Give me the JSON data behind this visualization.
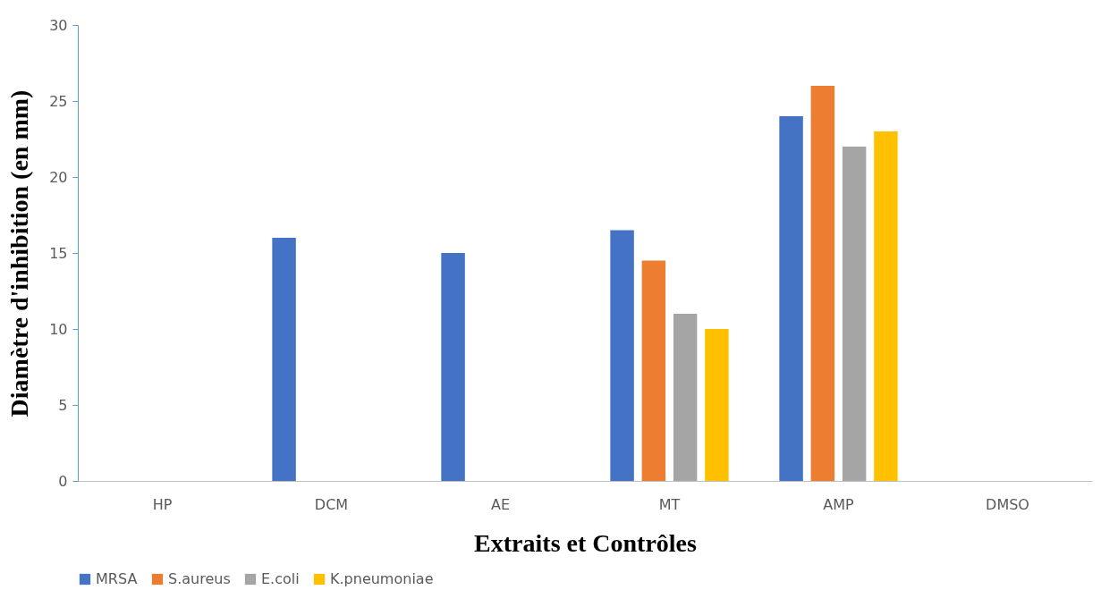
{
  "chart_data": {
    "type": "bar",
    "xlabel": "Extraits et Contrôles",
    "ylabel": "Diamètre d'inhibition (en mm)",
    "categories": [
      "HP",
      "DCM",
      "AE",
      "MT",
      "AMP",
      "DMSO"
    ],
    "series": [
      {
        "name": "MRSA",
        "color": "#4472c4",
        "values": [
          0,
          16,
          15,
          16.5,
          24,
          0
        ]
      },
      {
        "name": "S.aureus",
        "color": "#ed7d31",
        "values": [
          0,
          0,
          0,
          14.5,
          26,
          0
        ]
      },
      {
        "name": "E.coli",
        "color": "#a5a5a5",
        "values": [
          0,
          0,
          0,
          11,
          22,
          0
        ]
      },
      {
        "name": "K.pneumoniae",
        "color": "#ffc000",
        "values": [
          0,
          0,
          0,
          10,
          23,
          0
        ]
      }
    ],
    "ylim": [
      0,
      30
    ],
    "yticks": [
      0,
      5,
      10,
      15,
      20,
      25,
      30
    ],
    "grid": false,
    "legend": "bottom"
  }
}
